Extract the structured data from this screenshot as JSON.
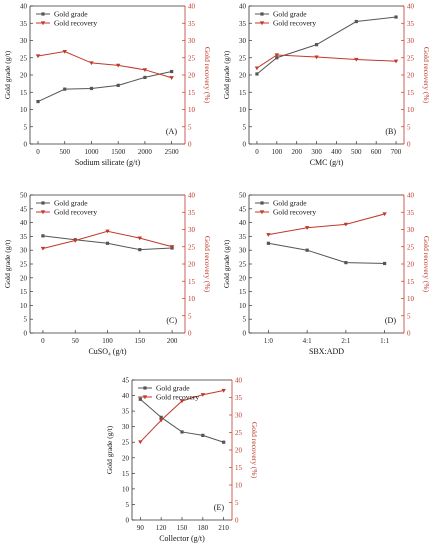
{
  "colors": {
    "grade": "#555555",
    "recovery": "#c0392b",
    "axis_left": "#333333",
    "axis_right": "#c0392b"
  },
  "chart_data": [
    {
      "panel": "(A)",
      "type": "line",
      "xlabel": "Sodium silicate (g/t)",
      "ylabel_left": "Gold grade (g/t)",
      "ylabel_right": "Gold recovery (%)",
      "x": [
        0,
        500,
        1000,
        1500,
        2000,
        2500
      ],
      "xticks": [
        0,
        500,
        1000,
        1500,
        2000,
        2500
      ],
      "xtick_labels": [
        "0",
        "500",
        "1000",
        "1500",
        "2000",
        "2500"
      ],
      "xlim": [
        -150,
        2750
      ],
      "ylim_left": [
        0,
        40
      ],
      "yticks_left": [
        0,
        5,
        10,
        15,
        20,
        25,
        30,
        35,
        40
      ],
      "ylim_right": [
        0,
        40
      ],
      "yticks_right": [
        0,
        5,
        10,
        15,
        20,
        25,
        30,
        35,
        40
      ],
      "series": [
        {
          "name": "Gold grade",
          "axis": "left",
          "values": [
            12.3,
            15.9,
            16.1,
            17.0,
            19.3,
            21.0
          ]
        },
        {
          "name": "Gold recovery",
          "axis": "right",
          "values": [
            25.5,
            26.8,
            23.5,
            22.8,
            21.5,
            19.2
          ]
        }
      ]
    },
    {
      "panel": "(B)",
      "type": "line",
      "xlabel": "CMC (g/t)",
      "ylabel_left": "Gold grade (g/t)",
      "ylabel_right": "Gold recovery (%)",
      "x": [
        0,
        100,
        300,
        500,
        700
      ],
      "xticks": [
        0,
        100,
        200,
        300,
        400,
        500,
        600,
        700
      ],
      "xtick_labels": [
        "0",
        "100",
        "200",
        "300",
        "400",
        "500",
        "600",
        "700"
      ],
      "xlim": [
        -40,
        740
      ],
      "ylim_left": [
        0,
        40
      ],
      "yticks_left": [
        0,
        5,
        10,
        15,
        20,
        25,
        30,
        35,
        40
      ],
      "ylim_right": [
        0,
        40
      ],
      "yticks_right": [
        0,
        5,
        10,
        15,
        20,
        25,
        30,
        35,
        40
      ],
      "series": [
        {
          "name": "Gold grade",
          "axis": "left",
          "values": [
            20.3,
            25.0,
            28.8,
            35.5,
            36.8
          ]
        },
        {
          "name": "Gold recovery",
          "axis": "right",
          "values": [
            22.0,
            25.8,
            25.2,
            24.5,
            24.0
          ]
        }
      ]
    },
    {
      "panel": "(C)",
      "type": "line",
      "xlabel": "CuSO₄ (g/t)",
      "ylabel_left": "Gold grade (g/t)",
      "ylabel_right": "Gold recovery (%)",
      "x": [
        0,
        50,
        100,
        150,
        200
      ],
      "xticks": [
        0,
        50,
        100,
        150,
        200
      ],
      "xtick_labels": [
        "0",
        "50",
        "100",
        "150",
        "200"
      ],
      "xlim": [
        -20,
        220
      ],
      "ylim_left": [
        0,
        50
      ],
      "yticks_left": [
        0,
        5,
        10,
        15,
        20,
        25,
        30,
        35,
        40,
        45,
        50
      ],
      "ylim_right": [
        0,
        40
      ],
      "yticks_right": [
        0,
        5,
        10,
        15,
        20,
        25,
        30,
        35,
        40
      ],
      "series": [
        {
          "name": "Gold grade",
          "axis": "left",
          "values": [
            35.2,
            33.8,
            32.5,
            30.2,
            30.8
          ]
        },
        {
          "name": "Gold recovery",
          "axis": "right",
          "values": [
            24.5,
            26.8,
            29.5,
            27.5,
            25.0
          ]
        }
      ]
    },
    {
      "panel": "(D)",
      "type": "line",
      "xlabel": "SBX:ADD",
      "ylabel_left": "Gold grade (g/t)",
      "ylabel_right": "Gold recovery (%)",
      "categories": [
        "1:0",
        "4:1",
        "2:1",
        "1:1"
      ],
      "ylim_left": [
        0,
        50
      ],
      "yticks_left": [
        0,
        5,
        10,
        15,
        20,
        25,
        30,
        35,
        40,
        45,
        50
      ],
      "ylim_right": [
        0,
        40
      ],
      "yticks_right": [
        0,
        5,
        10,
        15,
        20,
        25,
        30,
        35,
        40
      ],
      "series": [
        {
          "name": "Gold grade",
          "axis": "left",
          "values": [
            32.5,
            30.0,
            25.5,
            25.2
          ]
        },
        {
          "name": "Gold recovery",
          "axis": "right",
          "values": [
            28.5,
            30.5,
            31.5,
            34.5
          ]
        }
      ]
    },
    {
      "panel": "(E)",
      "type": "line",
      "xlabel": "Collector (g/t)",
      "ylabel_left": "Gold grade (g/t)",
      "ylabel_right": "Gold recovery (%)",
      "x": [
        90,
        120,
        150,
        180,
        210
      ],
      "xticks": [
        90,
        120,
        150,
        180,
        210
      ],
      "xtick_labels": [
        "90",
        "120",
        "150",
        "180",
        "210"
      ],
      "xlim": [
        78,
        222
      ],
      "ylim_left": [
        0,
        45
      ],
      "yticks_left": [
        0,
        5,
        10,
        15,
        20,
        25,
        30,
        35,
        40,
        45
      ],
      "ylim_right": [
        0,
        40
      ],
      "yticks_right": [
        0,
        5,
        10,
        15,
        20,
        25,
        30,
        35,
        40
      ],
      "series": [
        {
          "name": "Gold grade",
          "axis": "left",
          "values": [
            38.8,
            33.0,
            28.3,
            27.2,
            25.0
          ]
        },
        {
          "name": "Gold recovery",
          "axis": "right",
          "values": [
            22.3,
            28.5,
            34.0,
            35.8,
            37.0
          ]
        }
      ]
    }
  ]
}
